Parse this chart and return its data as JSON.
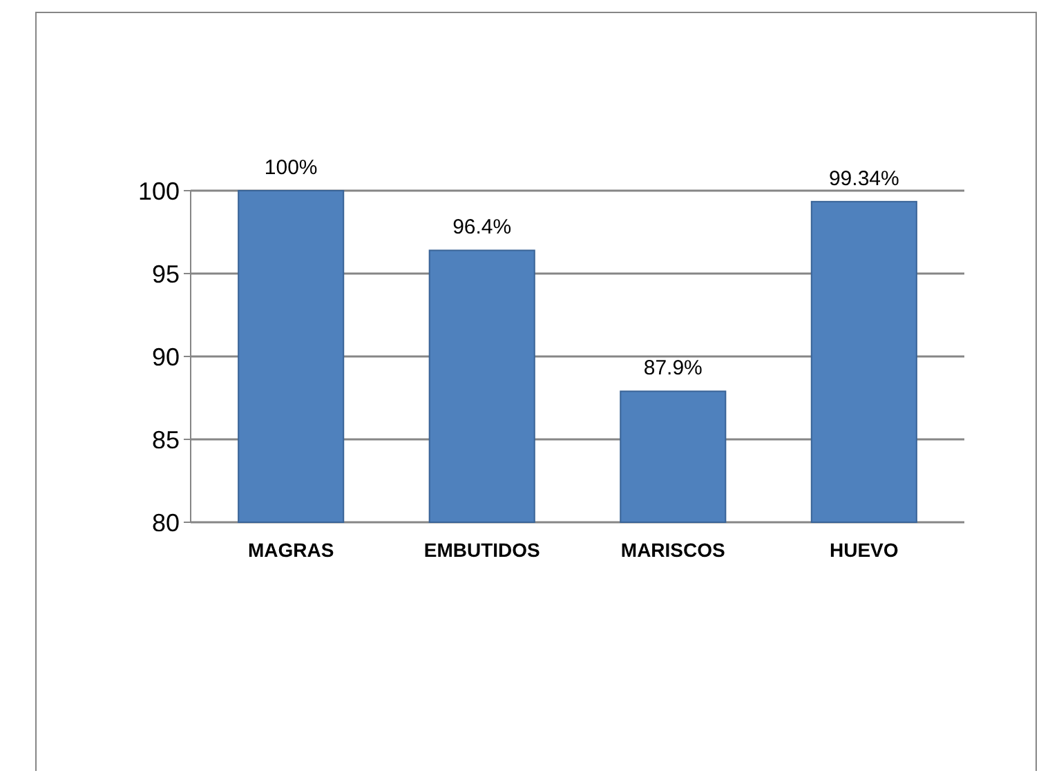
{
  "chart_data": {
    "type": "bar",
    "categories": [
      "MAGRAS",
      "EMBUTIDOS",
      "MARISCOS",
      "HUEVO"
    ],
    "values": [
      100,
      96.4,
      87.9,
      99.34
    ],
    "value_labels": [
      "100%",
      "96.4%",
      "87.9%",
      "99.34%"
    ],
    "color": "#4f81bd",
    "ylim": [
      80,
      100
    ],
    "yticks": [
      80,
      85,
      90,
      95,
      100
    ],
    "grid": "y"
  }
}
